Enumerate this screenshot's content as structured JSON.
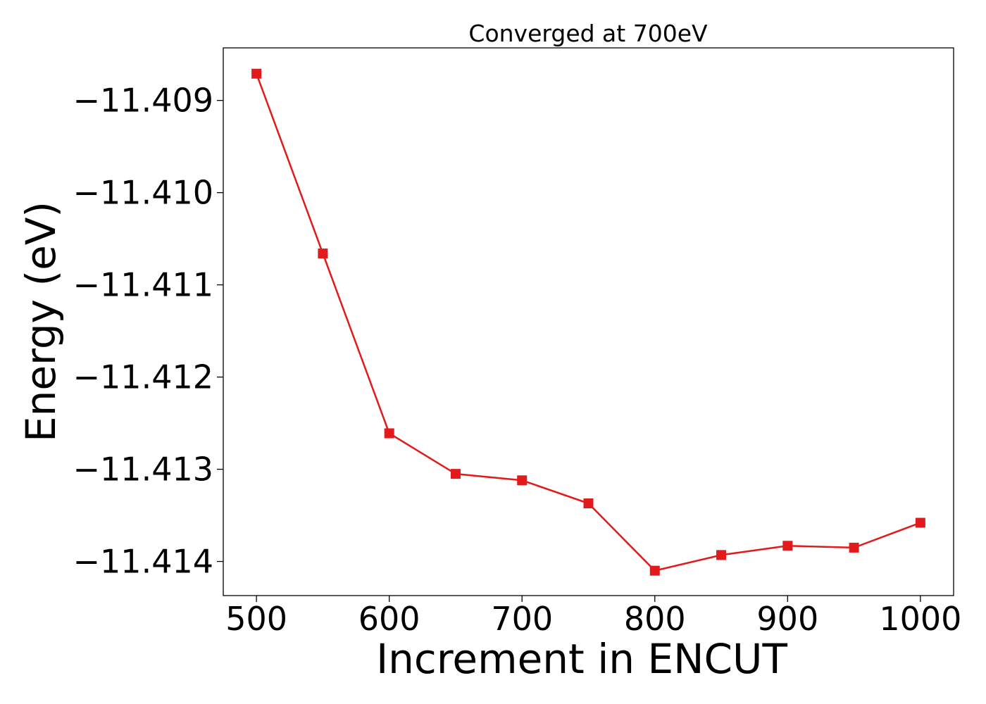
{
  "chart_data": {
    "type": "line",
    "title": "Converged at 700eV",
    "xlabel": "Increment in ENCUT",
    "ylabel": "Energy (eV)",
    "xlim": [
      475,
      1025
    ],
    "ylim": [
      -11.41437,
      -11.40843
    ],
    "xticks": [
      500,
      600,
      700,
      800,
      900,
      1000
    ],
    "xtick_labels": [
      "500",
      "600",
      "700",
      "800",
      "900",
      "1000"
    ],
    "yticks": [
      -11.409,
      -11.41,
      -11.411,
      -11.412,
      -11.413,
      -11.414
    ],
    "ytick_labels": [
      "−11.409",
      "−11.410",
      "−11.411",
      "−11.412",
      "−11.413",
      "−11.414"
    ],
    "grid": false,
    "series": [
      {
        "color": "#e31a1c",
        "marker": "square",
        "x": [
          500,
          550,
          600,
          650,
          700,
          750,
          800,
          850,
          900,
          950,
          1000
        ],
        "y": [
          -11.40871,
          -11.41066,
          -11.41261,
          -11.41305,
          -11.41312,
          -11.41337,
          -11.4141,
          -11.41393,
          -11.41383,
          -11.41385,
          -11.41358
        ]
      }
    ]
  }
}
